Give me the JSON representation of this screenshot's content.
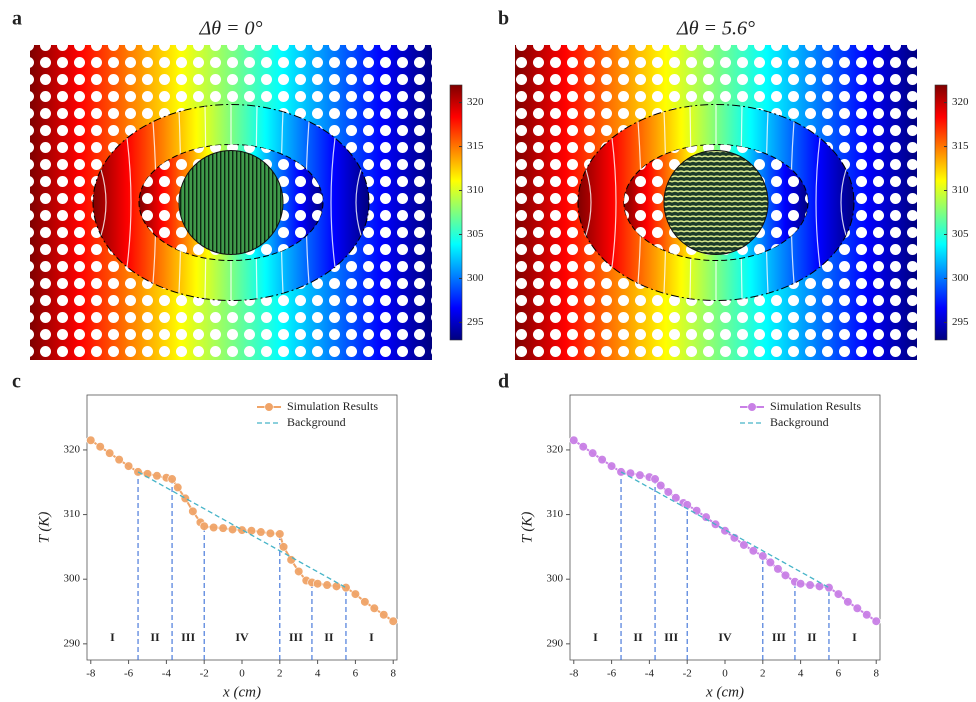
{
  "chart_data": [
    {
      "type": "heatmap",
      "panel_label": "a",
      "title": "Δθ = 0°",
      "colorbar_lim": [
        293,
        322
      ],
      "colorbar_ticks": [
        295,
        300,
        305,
        310,
        315,
        320
      ],
      "colormap": [
        "#00007f",
        "#0000ff",
        "#007fff",
        "#00ffff",
        "#7fff7f",
        "#ffff00",
        "#ff7f00",
        "#ff0000",
        "#7f0000"
      ]
    },
    {
      "type": "heatmap",
      "panel_label": "b",
      "title": "Δθ = 5.6°",
      "colorbar_lim": [
        293,
        322
      ],
      "colorbar_ticks": [
        295,
        300,
        305,
        310,
        315,
        320
      ],
      "colormap": [
        "#00007f",
        "#0000ff",
        "#007fff",
        "#00ffff",
        "#7fff7f",
        "#ffff00",
        "#ff7f00",
        "#ff0000",
        "#7f0000"
      ]
    },
    {
      "type": "line",
      "panel_label": "c",
      "xlabel": "x (cm)",
      "ylabel": "T (K)",
      "xlim": [
        -8.2,
        8.2
      ],
      "ylim": [
        287.5,
        328.5
      ],
      "xticks": [
        -8,
        -6,
        -4,
        -2,
        0,
        2,
        4,
        6,
        8
      ],
      "yticks": [
        290,
        300,
        310,
        320
      ],
      "legend": "upper right",
      "boundary_color": "#3a6fd8",
      "boundaries": [
        -5.5,
        -3.7,
        -2,
        2,
        3.7,
        5.5
      ],
      "region_labels": [
        "I",
        "II",
        "III",
        "IV",
        "III",
        "II",
        "I"
      ],
      "series": [
        {
          "name": "Simulation Results",
          "color": "#f0a468",
          "style": "marker-line",
          "x": [
            -8,
            -7.5,
            -7,
            -6.5,
            -6,
            -5.5,
            -5,
            -4.5,
            -4,
            -3.7,
            -3.4,
            -3,
            -2.6,
            -2.2,
            -2,
            -1.5,
            -1,
            -0.5,
            0,
            0.5,
            1,
            1.5,
            2,
            2.2,
            2.6,
            3,
            3.4,
            3.7,
            4,
            4.5,
            5,
            5.5,
            6,
            6.5,
            7,
            7.5,
            8
          ],
          "values": [
            321.5,
            320.5,
            319.5,
            318.5,
            317.5,
            316.6,
            316.3,
            316,
            315.7,
            315.5,
            314.2,
            312.5,
            310.5,
            308.8,
            308.2,
            308,
            307.9,
            307.7,
            307.6,
            307.5,
            307.3,
            307.1,
            307,
            305,
            303,
            301.2,
            299.8,
            299.5,
            299.3,
            299.1,
            298.9,
            298.7,
            297.7,
            296.5,
            295.5,
            294.5,
            293.5
          ]
        },
        {
          "name": "Background",
          "color": "#46b4c8",
          "style": "dashed",
          "x": [
            -5.5,
            5.5
          ],
          "values": [
            316.6,
            298.7
          ]
        }
      ]
    },
    {
      "type": "line",
      "panel_label": "d",
      "xlabel": "x (cm)",
      "ylabel": "T (K)",
      "xlim": [
        -8.2,
        8.2
      ],
      "ylim": [
        287.5,
        328.5
      ],
      "xticks": [
        -8,
        -6,
        -4,
        -2,
        0,
        2,
        4,
        6,
        8
      ],
      "yticks": [
        290,
        300,
        310,
        320
      ],
      "legend": "upper right",
      "boundary_color": "#3a6fd8",
      "boundaries": [
        -5.5,
        -3.7,
        -2,
        2,
        3.7,
        5.5
      ],
      "region_labels": [
        "I",
        "II",
        "III",
        "IV",
        "III",
        "II",
        "I"
      ],
      "series": [
        {
          "name": "Simulation Results",
          "color": "#c980e6",
          "style": "marker-line",
          "x": [
            -8,
            -7.5,
            -7,
            -6.5,
            -6,
            -5.5,
            -5,
            -4.5,
            -4,
            -3.7,
            -3.4,
            -3,
            -2.6,
            -2.2,
            -2,
            -1.5,
            -1,
            -0.5,
            0,
            0.5,
            1,
            1.5,
            2,
            2.4,
            2.8,
            3.2,
            3.7,
            4,
            4.5,
            5,
            5.5,
            6,
            6.5,
            7,
            7.5,
            8
          ],
          "values": [
            321.5,
            320.5,
            319.5,
            318.5,
            317.5,
            316.6,
            316.4,
            316.1,
            315.8,
            315.5,
            314.5,
            313.5,
            312.6,
            311.8,
            311.5,
            310.6,
            309.6,
            308.5,
            307.5,
            306.4,
            305.3,
            304.4,
            303.6,
            302.6,
            301.6,
            300.6,
            299.6,
            299.3,
            299.1,
            298.9,
            298.7,
            297.7,
            296.5,
            295.5,
            294.5,
            293.5
          ]
        },
        {
          "name": "Background",
          "color": "#46b4c8",
          "style": "dashed",
          "x": [
            -5.5,
            5.5
          ],
          "values": [
            316.6,
            298.7
          ]
        }
      ]
    }
  ]
}
